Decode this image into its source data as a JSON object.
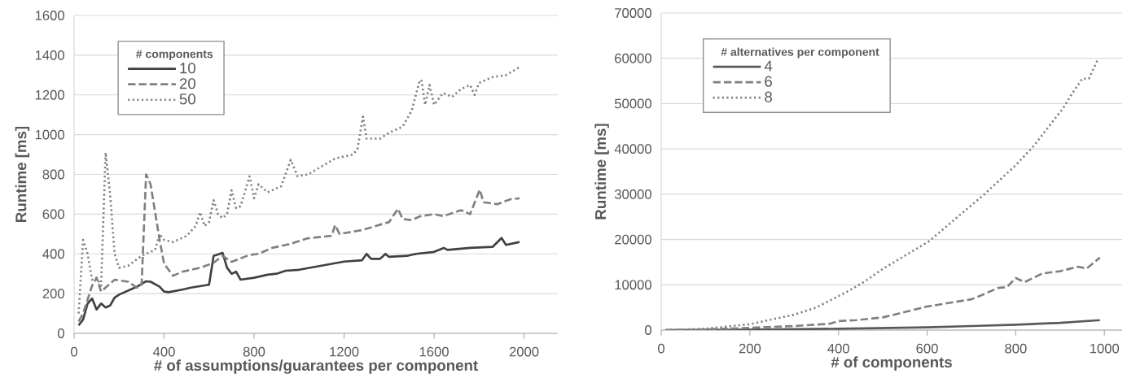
{
  "chart_data": [
    {
      "type": "line",
      "xlabel": "# of assumptions/guarantees per component",
      "ylabel": "Runtime [ms]",
      "legend_title": "# components",
      "xlim": [
        0,
        2150
      ],
      "xticks": [
        0,
        400,
        800,
        1200,
        1600,
        2000
      ],
      "ylim": [
        0,
        1600
      ],
      "yticks": [
        0,
        200,
        400,
        600,
        800,
        1000,
        1200,
        1400,
        1600
      ],
      "grid": "y",
      "legend": "top left",
      "series": [
        {
          "name": "10",
          "color": "#404040",
          "line_style": "solid",
          "x": [
            20,
            40,
            60,
            80,
            100,
            120,
            140,
            160,
            180,
            200,
            240,
            280,
            320,
            340,
            380,
            400,
            420,
            480,
            520,
            600,
            620,
            660,
            680,
            700,
            720,
            740,
            800,
            860,
            900,
            940,
            1000,
            1200,
            1280,
            1300,
            1320,
            1360,
            1384,
            1400,
            1480,
            1520,
            1600,
            1643,
            1660,
            1760,
            1860,
            1900,
            1920,
            1980
          ],
          "values": [
            40,
            70,
            150,
            175,
            120,
            150,
            130,
            140,
            180,
            195,
            215,
            235,
            262,
            260,
            235,
            210,
            207,
            220,
            230,
            245,
            390,
            405,
            330,
            300,
            310,
            270,
            280,
            295,
            300,
            315,
            320,
            361,
            368,
            400,
            375,
            375,
            400,
            385,
            390,
            400,
            410,
            430,
            420,
            430,
            435,
            480,
            445,
            460
          ]
        },
        {
          "name": "20",
          "color": "#808080",
          "line_style": "dashed",
          "x": [
            20,
            40,
            60,
            80,
            100,
            120,
            140,
            180,
            240,
            280,
            300,
            320,
            340,
            380,
            400,
            440,
            480,
            560,
            620,
            660,
            700,
            780,
            820,
            880,
            960,
            1036,
            1145,
            1160,
            1180,
            1280,
            1400,
            1440,
            1460,
            1500,
            1540,
            1600,
            1640,
            1720,
            1760,
            1803,
            1820,
            1880,
            1940,
            1980
          ],
          "values": [
            60,
            100,
            170,
            240,
            280,
            210,
            230,
            270,
            260,
            230,
            245,
            800,
            750,
            470,
            350,
            290,
            310,
            330,
            355,
            390,
            360,
            395,
            400,
            430,
            450,
            478,
            491,
            545,
            500,
            520,
            560,
            627,
            575,
            570,
            590,
            600,
            590,
            620,
            600,
            723,
            660,
            650,
            675,
            680
          ]
        },
        {
          "name": "50",
          "color": "#808080",
          "line_style": "dotted",
          "x": [
            20,
            40,
            60,
            80,
            100,
            120,
            140,
            160,
            180,
            200,
            240,
            300,
            360,
            380,
            400,
            440,
            500,
            540,
            560,
            580,
            600,
            620,
            640,
            660,
            680,
            700,
            720,
            740,
            780,
            800,
            820,
            860,
            920,
            963,
            993,
            1040,
            1100,
            1160,
            1240,
            1260,
            1284,
            1300,
            1360,
            1400,
            1460,
            1500,
            1537,
            1545,
            1560,
            1580,
            1600,
            1640,
            1680,
            1720,
            1760,
            1780,
            1800,
            1860,
            1920,
            1980
          ],
          "values": [
            100,
            470,
            400,
            270,
            280,
            240,
            910,
            700,
            400,
            330,
            340,
            390,
            420,
            500,
            470,
            460,
            490,
            540,
            610,
            540,
            560,
            670,
            600,
            580,
            600,
            720,
            630,
            640,
            790,
            680,
            750,
            710,
            740,
            873,
            791,
            800,
            840,
            880,
            900,
            930,
            1091,
            980,
            980,
            1010,
            1040,
            1120,
            1276,
            1270,
            1150,
            1250,
            1150,
            1210,
            1190,
            1230,
            1250,
            1200,
            1260,
            1290,
            1300,
            1340
          ]
        }
      ]
    },
    {
      "type": "line",
      "xlabel": "# of components",
      "ylabel": "Runtime [ms]",
      "legend_title": "# alternatives per component",
      "xlim": [
        0,
        1040
      ],
      "xticks": [
        0,
        200,
        400,
        600,
        800,
        1000
      ],
      "ylim": [
        0,
        70000
      ],
      "yticks": [
        0,
        10000,
        20000,
        30000,
        40000,
        50000,
        60000,
        70000
      ],
      "grid": "y",
      "legend": "top left",
      "series": [
        {
          "name": "4",
          "color": "#595959",
          "line_style": "solid",
          "x": [
            10,
            100,
            200,
            300,
            400,
            500,
            600,
            700,
            800,
            900,
            990
          ],
          "values": [
            0,
            50,
            100,
            200,
            300,
            450,
            600,
            900,
            1200,
            1600,
            2200
          ]
        },
        {
          "name": "6",
          "color": "#808080",
          "line_style": "dashed",
          "x": [
            10,
            100,
            200,
            300,
            380,
            400,
            440,
            500,
            600,
            700,
            720,
            760,
            780,
            800,
            820,
            860,
            900,
            940,
            960,
            990
          ],
          "values": [
            0,
            150,
            500,
            900,
            1400,
            2000,
            2200,
            2800,
            5200,
            6800,
            7600,
            9300,
            9500,
            11500,
            10600,
            12500,
            13000,
            14000,
            13600,
            16000
          ]
        },
        {
          "name": "8",
          "color": "#808080",
          "line_style": "dotted",
          "x": [
            10,
            100,
            200,
            300,
            350,
            420,
            457,
            500,
            604,
            727,
            800,
            840,
            907,
            925,
            950,
            965,
            985
          ],
          "values": [
            0,
            300,
            1300,
            3400,
            5000,
            8500,
            10600,
            13500,
            19600,
            29800,
            36400,
            40600,
            49000,
            51900,
            55500,
            55500,
            59700
          ]
        }
      ]
    }
  ]
}
